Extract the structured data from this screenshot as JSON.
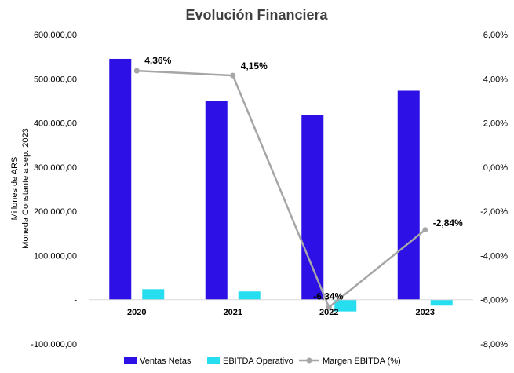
{
  "chart_data": {
    "type": "bar",
    "title": "Evolución Financiera",
    "ylabel": [
      "Millones de ARS",
      "Moneda Constante a sep. 2023"
    ],
    "y2label": "",
    "categories": [
      "2020",
      "2021",
      "2022",
      "2023"
    ],
    "ylim": [
      -100000,
      600000
    ],
    "y2lim": [
      -0.08,
      0.06
    ],
    "left_ticks": [
      "-100.000,00",
      "-",
      "100.000,00",
      "200.000,00",
      "300.000,00",
      "400.000,00",
      "500.000,00",
      "600.000,00"
    ],
    "right_ticks": [
      "-8,00%",
      "-6,00%",
      "-4,00%",
      "-2,00%",
      "0,00%",
      "2,00%",
      "4,00%",
      "6,00%"
    ],
    "grid": false,
    "legend_position": "bottom",
    "series": [
      {
        "name": "Ventas Netas",
        "type": "bar",
        "axis": "left",
        "color": "#2C10E6",
        "values": [
          545000,
          449000,
          418000,
          473000
        ]
      },
      {
        "name": "EBITDA Operativo",
        "type": "bar",
        "axis": "left",
        "color": "#27DDF0",
        "values": [
          23800,
          18600,
          -26500,
          -13400
        ]
      },
      {
        "name": "Margen EBITDA (%)",
        "type": "line",
        "axis": "right",
        "color": "#A6A6A6",
        "values": [
          0.0436,
          0.0415,
          -0.0634,
          -0.0284
        ],
        "labels": [
          "4,36%",
          "4,15%",
          "-6,34%",
          "-2,84%"
        ]
      }
    ]
  }
}
